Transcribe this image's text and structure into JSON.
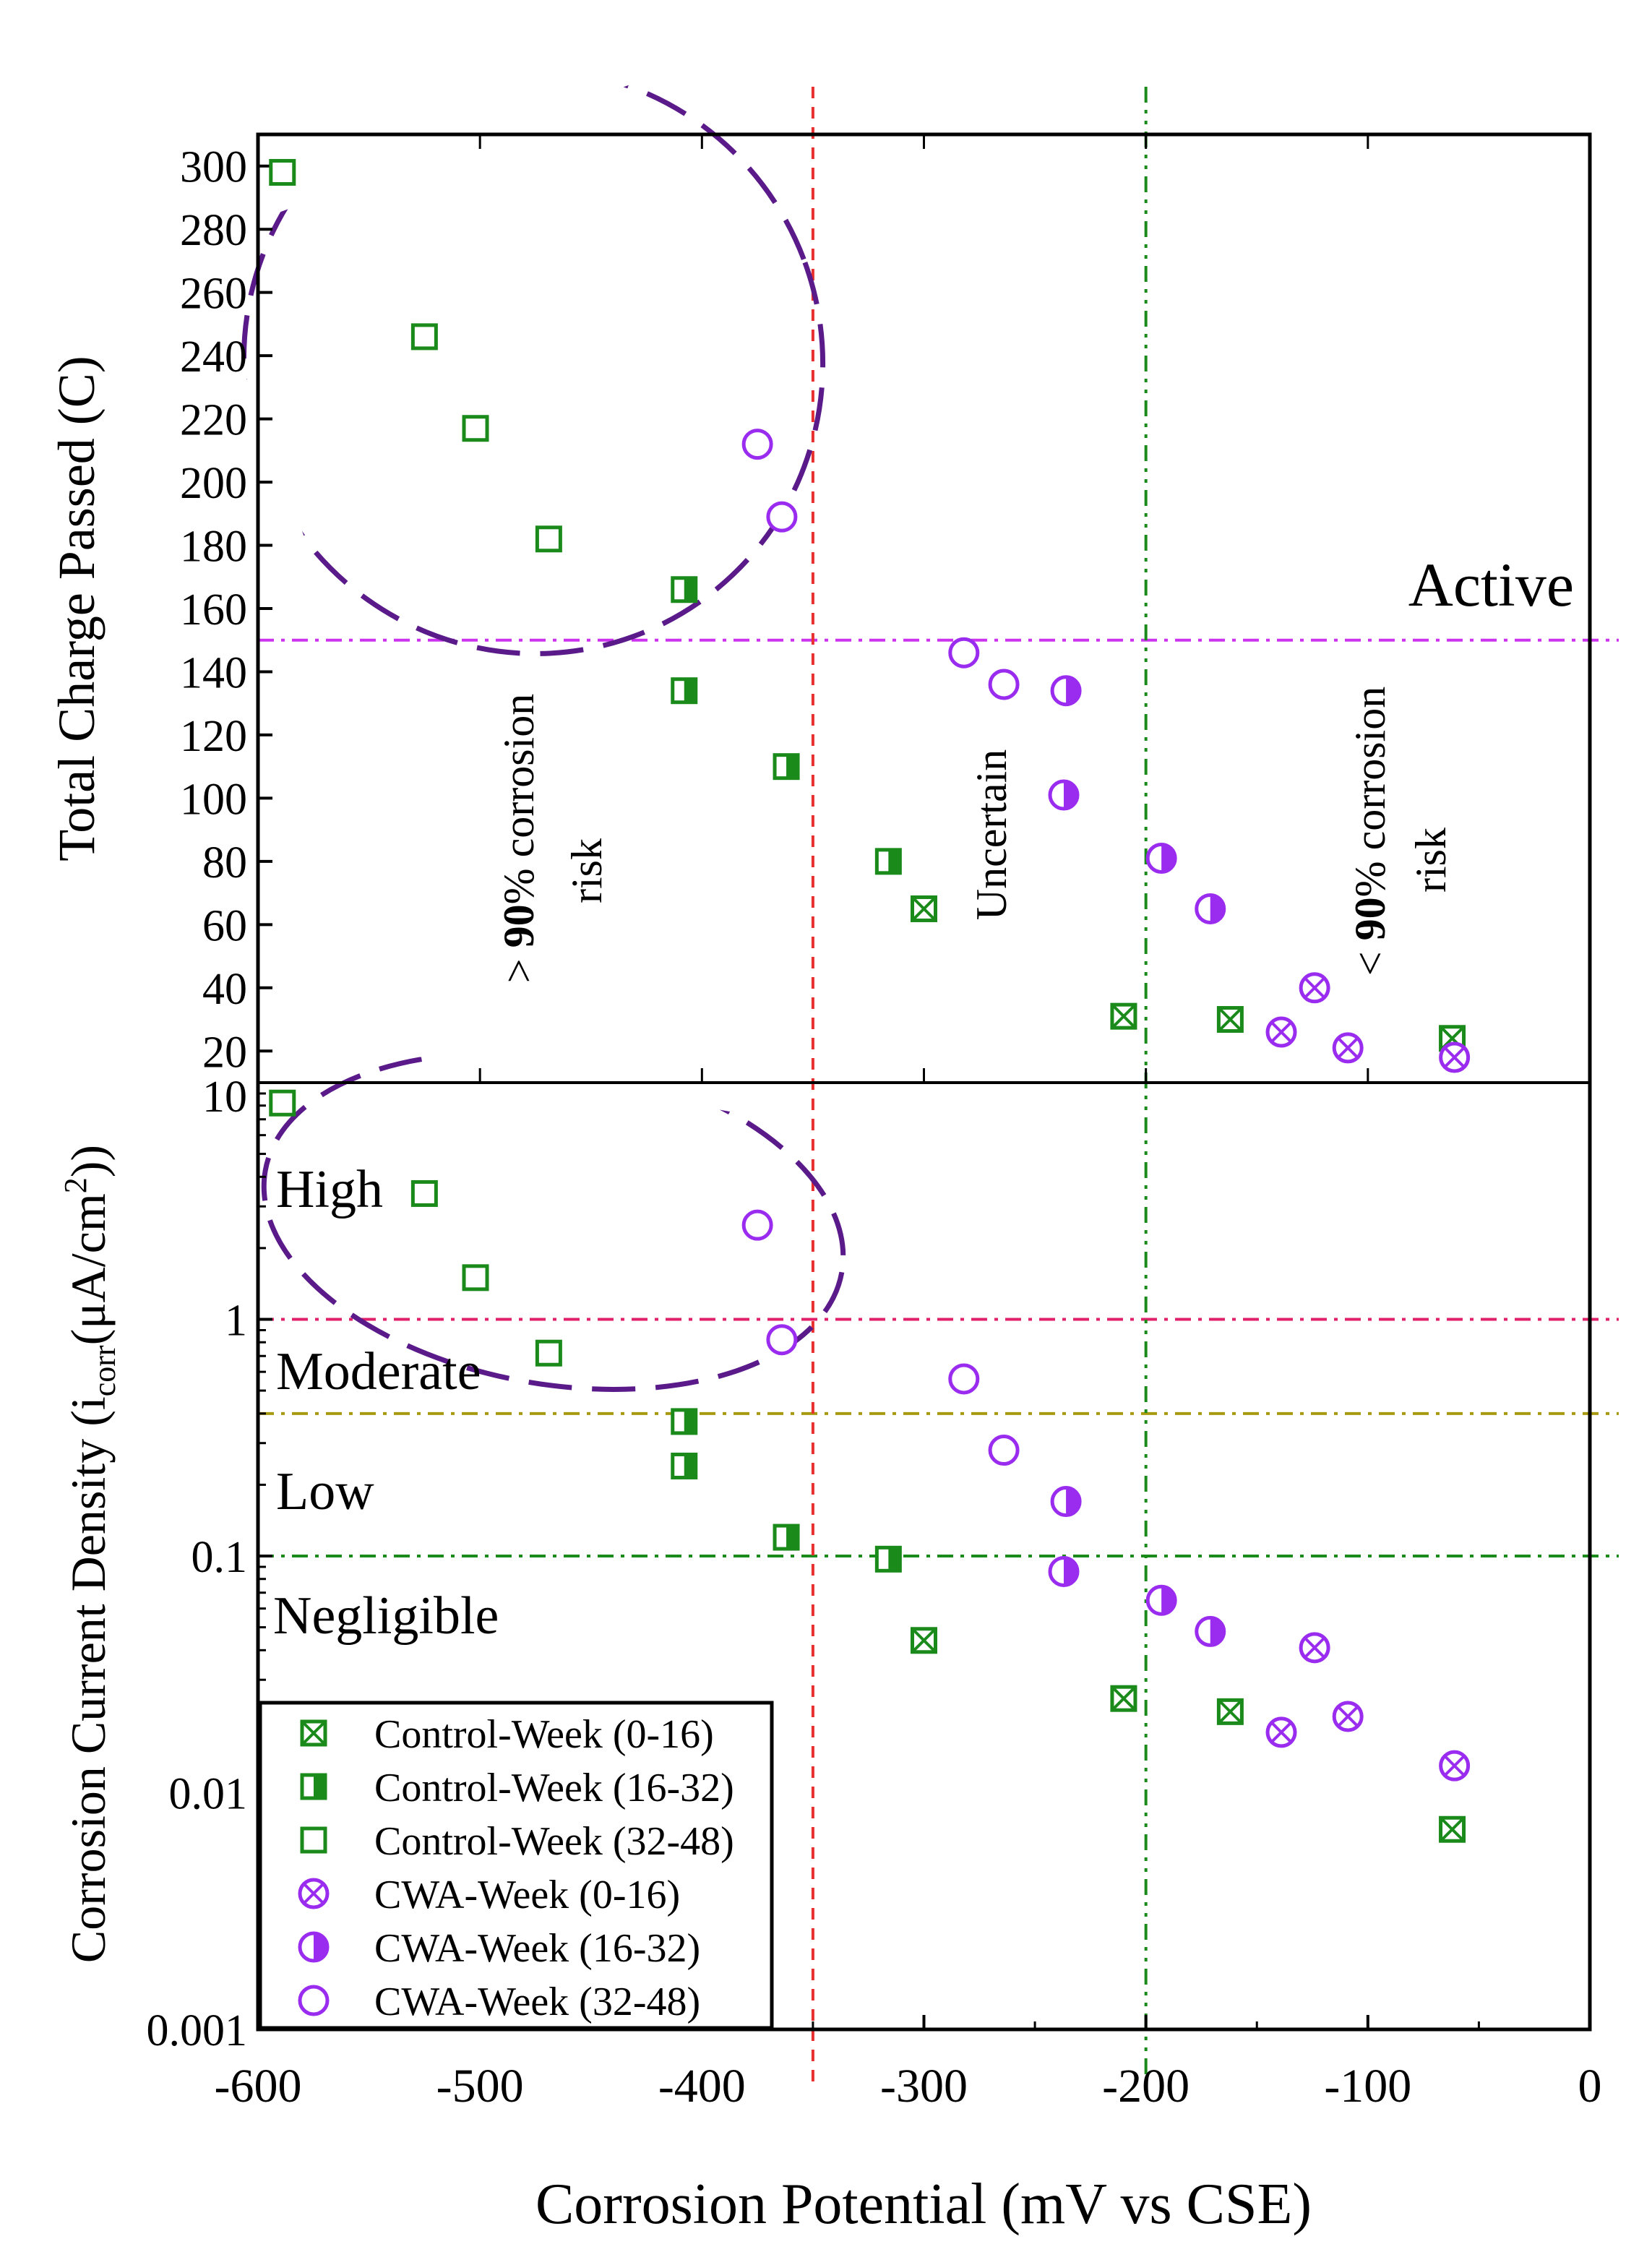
{
  "chart_data": {
    "type": "scatter",
    "xlabel": "Corrosion Potential (mV vs CSE)",
    "x_ticks": [
      "-600",
      "-500",
      "-400",
      "-300",
      "-200",
      "-100",
      "0"
    ],
    "xlim": [
      -600,
      0
    ],
    "top_panel": {
      "ylabel": "Total Charge Passed (C)",
      "ylim": [
        10,
        310
      ],
      "y_ticks": [
        "300",
        "280",
        "260",
        "240",
        "220",
        "200",
        "180",
        "160",
        "140",
        "120",
        "100",
        "80",
        "60",
        "40",
        "20"
      ],
      "y_tick_values": [
        300,
        280,
        260,
        240,
        220,
        200,
        180,
        160,
        140,
        120,
        100,
        80,
        60,
        40,
        20
      ],
      "threshold": 150,
      "active_label": "Active",
      "series": [
        {
          "name": "Control-Week (0-16)",
          "marker": "xsquare",
          "color": "#1a8a1a",
          "points": [
            [
              -300,
              65
            ],
            [
              -210,
              31
            ],
            [
              -162,
              30
            ],
            [
              -62,
              24
            ]
          ]
        },
        {
          "name": "Control-Week (16-32)",
          "marker": "halfsquare",
          "color": "#1a8a1a",
          "points": [
            [
              -408,
              166
            ],
            [
              -408,
              134
            ],
            [
              -362,
              110
            ],
            [
              -316,
              80
            ]
          ]
        },
        {
          "name": "Control-Week (32-48)",
          "marker": "square",
          "color": "#1a8a1a",
          "points": [
            [
              -589,
              298
            ],
            [
              -525,
              246
            ],
            [
              -502,
              217
            ],
            [
              -469,
              182
            ]
          ]
        },
        {
          "name": "CWA-Week (0-16)",
          "marker": "xcircle",
          "color": "#9a2cf0",
          "points": [
            [
              -139,
              26
            ],
            [
              -124,
              40
            ],
            [
              -109,
              21
            ],
            [
              -61,
              18
            ]
          ]
        },
        {
          "name": "CWA-Week (16-32)",
          "marker": "halfcircle",
          "color": "#9a2cf0",
          "points": [
            [
              -236,
              134
            ],
            [
              -237,
              101
            ],
            [
              -193,
              81
            ],
            [
              -171,
              65
            ]
          ]
        },
        {
          "name": "CWA-Week (32-48)",
          "marker": "circle",
          "color": "#9a2cf0",
          "points": [
            [
              -375,
              212
            ],
            [
              -364,
              189
            ],
            [
              -282,
              146
            ],
            [
              -264,
              136
            ]
          ]
        }
      ]
    },
    "bottom_panel": {
      "ylabel_main": "Corrosion Current Density (i",
      "ylabel_sub": "corr",
      "ylabel_rest": "(μA/cm",
      "ylabel_sup": "2",
      "ylabel_end": "))",
      "ylim": [
        0.001,
        10
      ],
      "scale": "log",
      "y_ticks": [
        "10",
        "1",
        "0.1",
        "0.01",
        "0.001"
      ],
      "y_tick_values": [
        10,
        1,
        0.1,
        0.01,
        0.001
      ],
      "thresholds": [
        1,
        0.4,
        0.1
      ],
      "zone_labels": [
        "High",
        "Moderate",
        "Low",
        "Negligible"
      ],
      "series": [
        {
          "name": "Control-Week (0-16)",
          "marker": "xsquare",
          "color": "#1a8a1a",
          "points": [
            [
              -300,
              0.044
            ],
            [
              -210,
              0.025
            ],
            [
              -162,
              0.022
            ],
            [
              -62,
              0.007
            ]
          ]
        },
        {
          "name": "Control-Week (16-32)",
          "marker": "halfsquare",
          "color": "#1a8a1a",
          "points": [
            [
              -408,
              0.37
            ],
            [
              -408,
              0.24
            ],
            [
              -362,
              0.12
            ],
            [
              -316,
              0.097
            ]
          ]
        },
        {
          "name": "Control-Week (32-48)",
          "marker": "square",
          "color": "#1a8a1a",
          "points": [
            [
              -589,
              8.2
            ],
            [
              -525,
              3.4
            ],
            [
              -502,
              1.5
            ],
            [
              -469,
              0.72
            ]
          ]
        },
        {
          "name": "CWA-Week (0-16)",
          "marker": "xcircle",
          "color": "#9a2cf0",
          "points": [
            [
              -139,
              0.018
            ],
            [
              -124,
              0.041
            ],
            [
              -109,
              0.021
            ],
            [
              -61,
              0.013
            ]
          ]
        },
        {
          "name": "CWA-Week (16-32)",
          "marker": "halfcircle",
          "color": "#9a2cf0",
          "points": [
            [
              -236,
              0.17
            ],
            [
              -237,
              0.086
            ],
            [
              -193,
              0.065
            ],
            [
              -171,
              0.048
            ]
          ]
        },
        {
          "name": "CWA-Week (32-48)",
          "marker": "circle",
          "color": "#9a2cf0",
          "points": [
            [
              -375,
              2.5
            ],
            [
              -364,
              0.82
            ],
            [
              -282,
              0.56
            ],
            [
              -264,
              0.28
            ]
          ]
        }
      ]
    },
    "vertical_lines": [
      -350,
      -200
    ],
    "annotations": {
      "high_risk_pre": "> ",
      "high_risk_bold": "90",
      "high_risk_post": "% corrosion",
      "high_risk_line2": "risk",
      "uncertain": "Uncertain",
      "low_risk_pre": "< ",
      "low_risk_bold": "90",
      "low_risk_post": "% corrosion",
      "low_risk_line2": "risk"
    },
    "legend": {
      "position": "bottom-left",
      "entries": [
        "Control-Week (0-16)",
        "Control-Week (16-32)",
        "Control-Week (32-48)",
        "CWA-Week (0-16)",
        "CWA-Week (16-32)",
        "CWA-Week (32-48)"
      ]
    },
    "colors": {
      "control": "#1a8a1a",
      "cwa": "#9a2cf0",
      "threshold_top": "#cc33ee",
      "line_red": "#e83030",
      "line_green": "#1a8a1a",
      "line_magenta": "#e0206a",
      "line_olive": "#a89a10",
      "ellipse": "#5a1a8a"
    }
  }
}
